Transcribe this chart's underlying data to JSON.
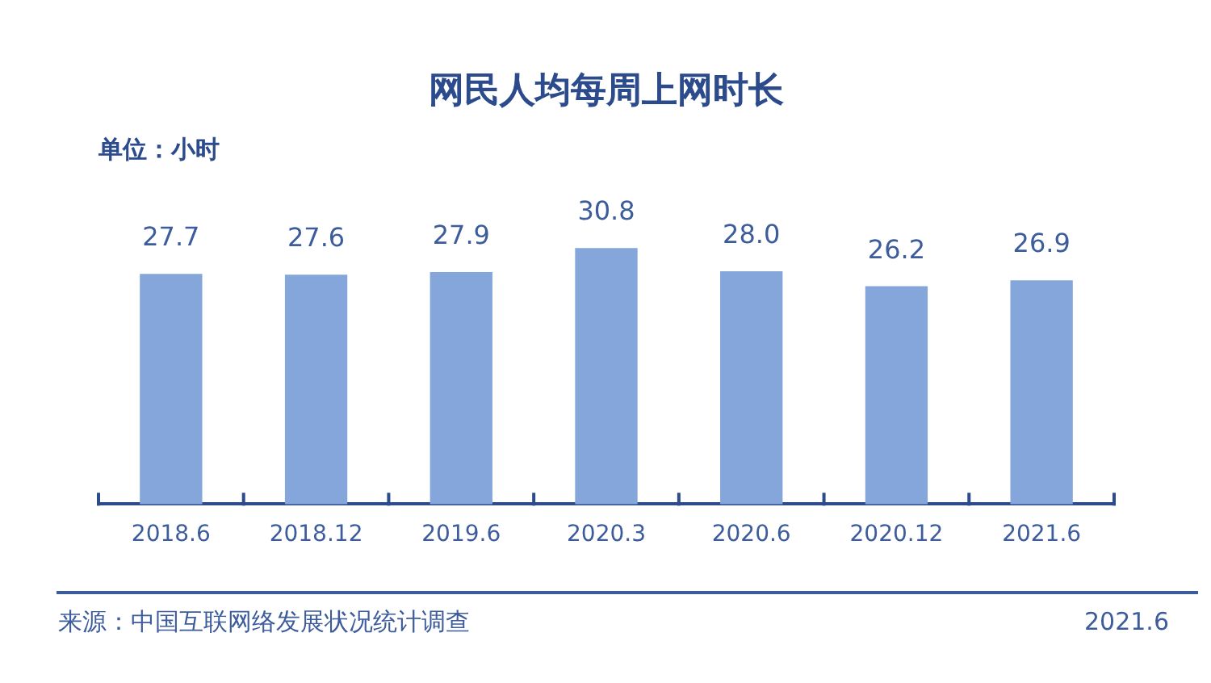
{
  "chart_data": {
    "type": "bar",
    "title": "网民人均每周上网时长",
    "subtitle": "单位：小时",
    "categories": [
      "2018.6",
      "2018.12",
      "2019.6",
      "2020.3",
      "2020.6",
      "2020.12",
      "2021.6"
    ],
    "values": [
      27.7,
      27.6,
      27.9,
      30.8,
      28.0,
      26.2,
      26.9
    ],
    "value_labels": [
      "27.7",
      "27.6",
      "27.9",
      "30.8",
      "28.0",
      "26.2",
      "26.9"
    ],
    "color": "#84a6da",
    "annotations": [
      "来源：中国互联网络发展状况统计调查",
      "2021.6"
    ]
  }
}
